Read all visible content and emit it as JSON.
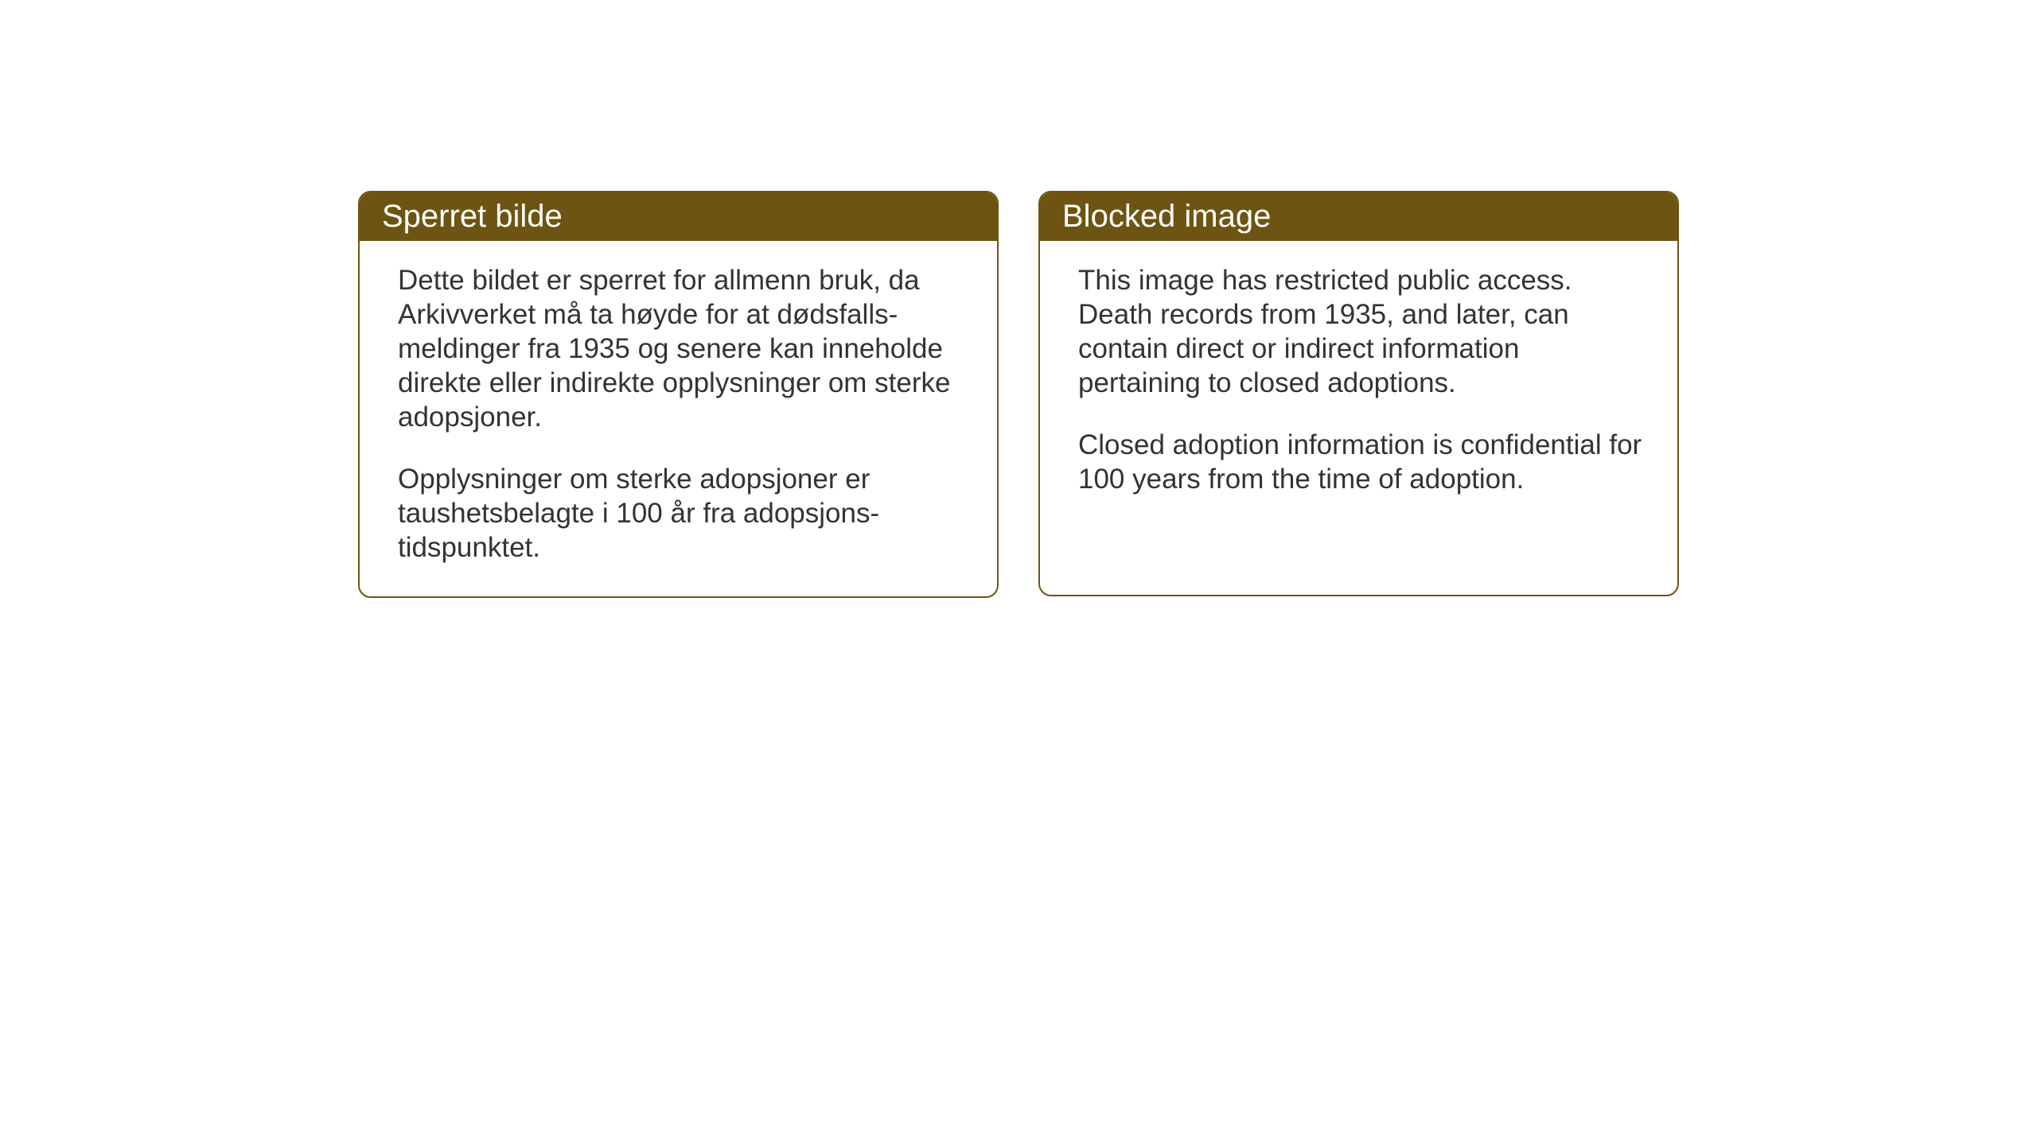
{
  "cards": {
    "left": {
      "title": "Sperret bilde",
      "paragraph1": "Dette bildet er sperret for allmenn bruk, da Arkivverket må ta høyde for at dødsfalls-meldinger fra 1935 og senere kan inneholde direkte eller indirekte opplysninger om sterke adopsjoner.",
      "paragraph2": "Opplysninger om sterke adopsjoner er taushetsbelagte i 100 år fra adopsjons-tidspunktet."
    },
    "right": {
      "title": "Blocked image",
      "paragraph1": "This image has restricted public access. Death records from 1935, and later, can contain direct or indirect information pertaining to closed adoptions.",
      "paragraph2": "Closed adoption information is confidential for 100 years from the time of adoption."
    }
  },
  "styling": {
    "header_bg_color": "#6e5412",
    "header_text_color": "#ffffff",
    "border_color": "#6e5412",
    "body_text_color": "#333333",
    "card_bg_color": "#ffffff",
    "page_bg_color": "#ffffff",
    "border_radius": 16,
    "header_fontsize": 40,
    "body_fontsize": 35
  }
}
